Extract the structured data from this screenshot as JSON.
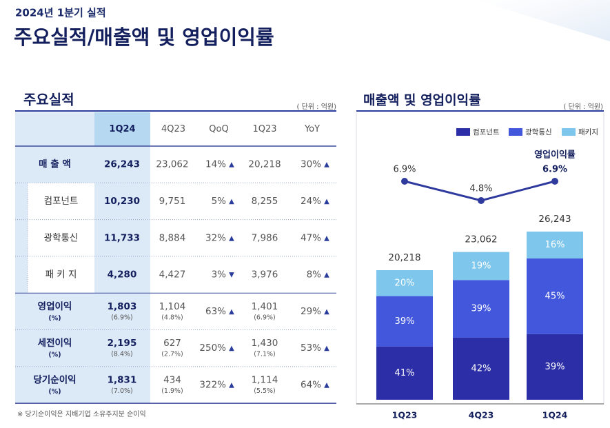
{
  "header": {
    "subtitle": "2024년 1분기 실적",
    "title": "주요실적/매출액 및 영업이익률"
  },
  "table": {
    "title": "주요실적",
    "unit": "( 단위 : 억원)",
    "columns": [
      "1Q24",
      "4Q23",
      "QoQ",
      "1Q23",
      "YoY"
    ],
    "rows": [
      {
        "label": "매 출 액",
        "cells": [
          {
            "text": "26,243"
          },
          {
            "text": "23,062"
          },
          {
            "text": "14%",
            "arrow": "▲"
          },
          {
            "text": "20,218"
          },
          {
            "text": "30%",
            "arrow": "▲"
          }
        ]
      },
      {
        "label": "컴포넌트",
        "cells": [
          {
            "text": "10,230"
          },
          {
            "text": "9,751"
          },
          {
            "text": "5%",
            "arrow": "▲"
          },
          {
            "text": "8,255"
          },
          {
            "text": "24%",
            "arrow": "▲"
          }
        ]
      },
      {
        "label": "광학통신",
        "cells": [
          {
            "text": "11,733"
          },
          {
            "text": "8,884"
          },
          {
            "text": "32%",
            "arrow": "▲"
          },
          {
            "text": "7,986"
          },
          {
            "text": "47%",
            "arrow": "▲"
          }
        ]
      },
      {
        "label": "패 키 지",
        "cells": [
          {
            "text": "4,280"
          },
          {
            "text": "4,427"
          },
          {
            "text": "3%",
            "arrow": "▼"
          },
          {
            "text": "3,976"
          },
          {
            "text": "8%",
            "arrow": "▲"
          }
        ]
      },
      {
        "label": "영업이익",
        "label_sub": "(%)",
        "cells": [
          {
            "text": "1,803",
            "sub": "(6.9%)"
          },
          {
            "text": "1,104",
            "sub": "(4.8%)"
          },
          {
            "text": "63%",
            "arrow": "▲"
          },
          {
            "text": "1,401",
            "sub": "(6.9%)"
          },
          {
            "text": "29%",
            "arrow": "▲"
          }
        ]
      },
      {
        "label": "세전이익",
        "label_sub": "(%)",
        "cells": [
          {
            "text": "2,195",
            "sub": "(8.4%)"
          },
          {
            "text": "627",
            "sub": "(2.7%)"
          },
          {
            "text": "250%",
            "arrow": "▲"
          },
          {
            "text": "1,430",
            "sub": "(7.1%)"
          },
          {
            "text": "53%",
            "arrow": "▲"
          }
        ]
      },
      {
        "label": "당기순이익",
        "label_sub": "(%)",
        "cells": [
          {
            "text": "1,831",
            "sub": "(7.0%)"
          },
          {
            "text": "434",
            "sub": "(1.9%)"
          },
          {
            "text": "322%",
            "arrow": "▲"
          },
          {
            "text": "1,114",
            "sub": "(5.5%)"
          },
          {
            "text": "64%",
            "arrow": "▲"
          }
        ]
      }
    ],
    "footnote": "※ 당기순이익은 지배기업 소유주지분 순이익"
  },
  "chart_data": {
    "type": "stacked_bar_line",
    "title": "매출액 및 영업이익률",
    "unit": "( 단위 : 억원)",
    "categories": [
      "1Q23",
      "4Q23",
      "1Q24"
    ],
    "totals": {
      "values": [
        20218,
        23062,
        26243
      ],
      "value_labels": [
        "20,218",
        "23,062",
        "26,243"
      ]
    },
    "series": [
      {
        "name": "컴포넌트",
        "color": "#2b2ea6",
        "values": [
          41,
          42,
          39
        ],
        "value_labels": [
          "41%",
          "42%",
          "39%"
        ]
      },
      {
        "name": "광학통신",
        "color": "#4257dc",
        "values": [
          39,
          39,
          45
        ],
        "value_labels": [
          "39%",
          "39%",
          "45%"
        ]
      },
      {
        "name": "패키지",
        "color": "#7ec6ec",
        "values": [
          20,
          19,
          16
        ],
        "value_labels": [
          "20%",
          "19%",
          "16%"
        ]
      }
    ],
    "line": {
      "name": "영업이익률",
      "color": "#2f3a9e",
      "values": [
        6.9,
        4.8,
        6.9
      ],
      "value_labels": [
        "6.9%",
        "4.8%",
        "6.9%"
      ]
    }
  }
}
